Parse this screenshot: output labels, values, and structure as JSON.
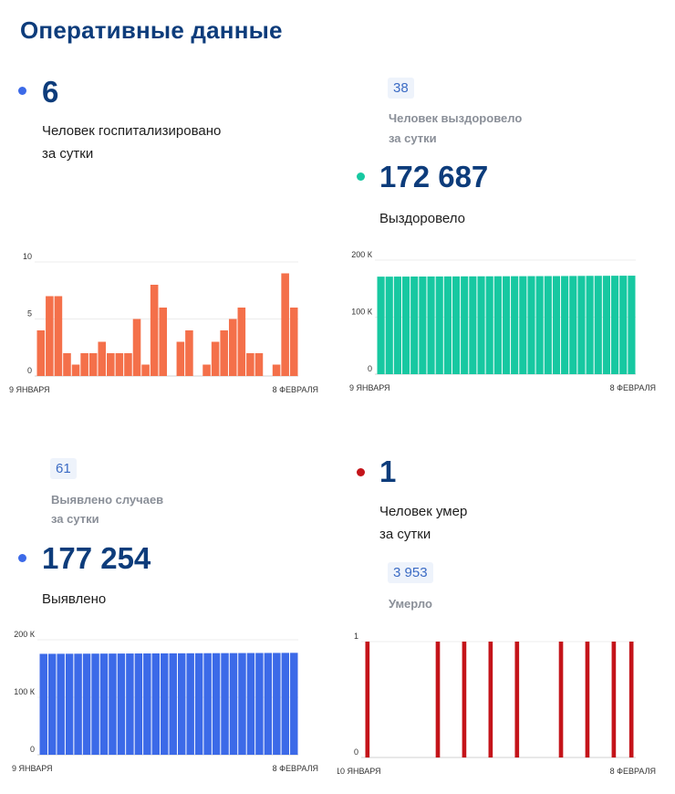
{
  "page": {
    "title": "Оперативные данные"
  },
  "colors": {
    "hospital": "#f4704a",
    "recovered": "#17c8a1",
    "cases": "#3c6ae8",
    "deaths": "#c4141a",
    "heading": "#0d3c7b"
  },
  "hospitalized": {
    "value": "6",
    "label_line1": "Человек госпитализировано",
    "label_line2": "за сутки"
  },
  "recovered": {
    "daily": "38",
    "daily_label_line1": "Человек выздоровело",
    "daily_label_line2": "за сутки",
    "total": "172 687",
    "total_label": "Выздоровело"
  },
  "cases": {
    "daily": "61",
    "daily_label_line1": "Выявлено случаев",
    "daily_label_line2": "за сутки",
    "total": "177 254",
    "total_label": "Выявлено"
  },
  "deaths": {
    "value": "1",
    "label_line1": "Человек умер",
    "label_line2": "за сутки",
    "total": "3 953",
    "total_label": "Умерло"
  },
  "chart_data": [
    {
      "id": "hospitalized",
      "type": "bar",
      "color": "#f4704a",
      "ylim": [
        0,
        10
      ],
      "yticks": [
        {
          "v": 0,
          "label": "0"
        },
        {
          "v": 5,
          "label": "5"
        },
        {
          "v": 10,
          "label": "10"
        }
      ],
      "xlabels": [
        "9 ЯНВАРЯ",
        "8 ФЕВРАЛЯ"
      ],
      "values": [
        4,
        7,
        7,
        2,
        1,
        2,
        2,
        3,
        2,
        2,
        2,
        5,
        1,
        8,
        6,
        0,
        3,
        4,
        0,
        1,
        3,
        4,
        5,
        6,
        2,
        2,
        0,
        1,
        9,
        6
      ]
    },
    {
      "id": "recovered",
      "type": "bar",
      "color": "#17c8a1",
      "ylim": [
        0,
        200000
      ],
      "yticks": [
        {
          "v": 0,
          "label": "0"
        },
        {
          "v": 100000,
          "label": "100 К"
        },
        {
          "v": 200000,
          "label": "200 К"
        }
      ],
      "xlabels": [
        "9 ЯНВАРЯ",
        "8 ФЕВРАЛЯ"
      ],
      "values": [
        171000,
        171000,
        171100,
        171100,
        171200,
        171200,
        171300,
        171300,
        171400,
        171400,
        171500,
        171500,
        171600,
        171600,
        171700,
        171700,
        171800,
        171800,
        171900,
        171900,
        172000,
        172000,
        172100,
        172200,
        172300,
        172400,
        172450,
        172500,
        172600,
        172650,
        172687
      ]
    },
    {
      "id": "cases",
      "type": "bar",
      "color": "#3c6ae8",
      "ylim": [
        0,
        200000
      ],
      "yticks": [
        {
          "v": 0,
          "label": "0"
        },
        {
          "v": 100000,
          "label": "100 К"
        },
        {
          "v": 200000,
          "label": "200 К"
        }
      ],
      "xlabels": [
        "9 ЯНВАРЯ",
        "8 ФЕВРАЛЯ"
      ],
      "values": [
        175500,
        175560,
        175620,
        175680,
        175740,
        175800,
        175860,
        175920,
        175980,
        176040,
        176100,
        176160,
        176220,
        176280,
        176340,
        176400,
        176460,
        176520,
        176580,
        176640,
        176700,
        176760,
        176820,
        176880,
        176940,
        177000,
        177060,
        177120,
        177193,
        177254
      ]
    },
    {
      "id": "deaths",
      "type": "bar",
      "color": "#c4141a",
      "ylim": [
        0,
        1
      ],
      "yticks": [
        {
          "v": 0,
          "label": "0"
        },
        {
          "v": 1,
          "label": "1"
        }
      ],
      "xlabels": [
        "10 ЯНВАРЯ",
        "8 ФЕВРАЛЯ"
      ],
      "values": [
        1,
        0,
        0,
        0,
        0,
        0,
        0,
        0,
        1,
        0,
        0,
        1,
        0,
        0,
        1,
        0,
        0,
        1,
        0,
        0,
        0,
        0,
        1,
        0,
        0,
        1,
        0,
        0,
        1,
        0,
        1
      ]
    }
  ]
}
